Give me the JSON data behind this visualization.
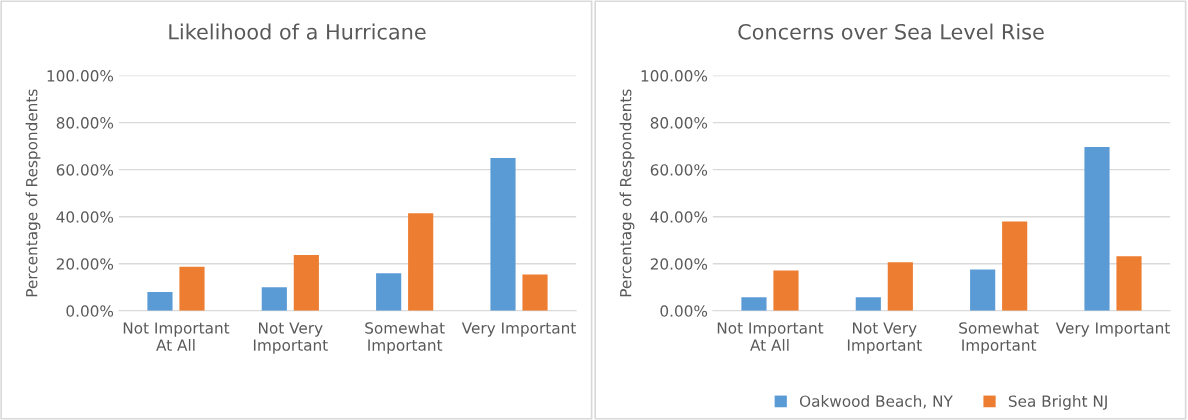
{
  "chart_data": [
    {
      "type": "bar",
      "title": "Likelihood of a Hurricane",
      "ylabel": "Percentage of Respondents",
      "categories": [
        "Not Important\nAt All",
        "Not Very\nImportant",
        "Somewhat\nImportant",
        "Very Important"
      ],
      "series": [
        {
          "color": "#5b9bd5",
          "values": [
            8.0,
            10.0,
            16.0,
            65.0
          ]
        },
        {
          "color": "#ed7d31",
          "values": [
            18.7,
            23.7,
            41.5,
            15.4
          ]
        }
      ],
      "ylim": [
        0,
        100
      ],
      "yticks": [
        {
          "value": 0,
          "label": "0.00%"
        },
        {
          "value": 20,
          "label": "20.00%"
        },
        {
          "value": 40,
          "label": "40.00%"
        },
        {
          "value": 60,
          "label": "60.00%"
        },
        {
          "value": 80,
          "label": "80.00%"
        },
        {
          "value": 100,
          "label": "100.00%"
        }
      ],
      "grid": "y"
    },
    {
      "type": "bar",
      "title": "Concerns over Sea Level Rise",
      "ylabel": "Percentage of Respondents",
      "categories": [
        "Not Important\nAt All",
        "Not Very\nImportant",
        "Somewhat\nImportant",
        "Very Important"
      ],
      "series": [
        {
          "name": "Oakwood Beach, NY",
          "color": "#5b9bd5",
          "values": [
            5.8,
            5.8,
            17.6,
            69.6
          ]
        },
        {
          "name": "Sea Bright NJ",
          "color": "#ed7d31",
          "values": [
            17.1,
            20.6,
            38.0,
            23.2
          ]
        }
      ],
      "ylim": [
        0,
        100
      ],
      "yticks": [
        {
          "value": 0,
          "label": "0.00%"
        },
        {
          "value": 20,
          "label": "20.00%"
        },
        {
          "value": 40,
          "label": "40.00%"
        },
        {
          "value": 60,
          "label": "60.00%"
        },
        {
          "value": 80,
          "label": "80.00%"
        },
        {
          "value": 100,
          "label": "100.00%"
        }
      ],
      "grid": "y",
      "legend": "bottom"
    }
  ]
}
